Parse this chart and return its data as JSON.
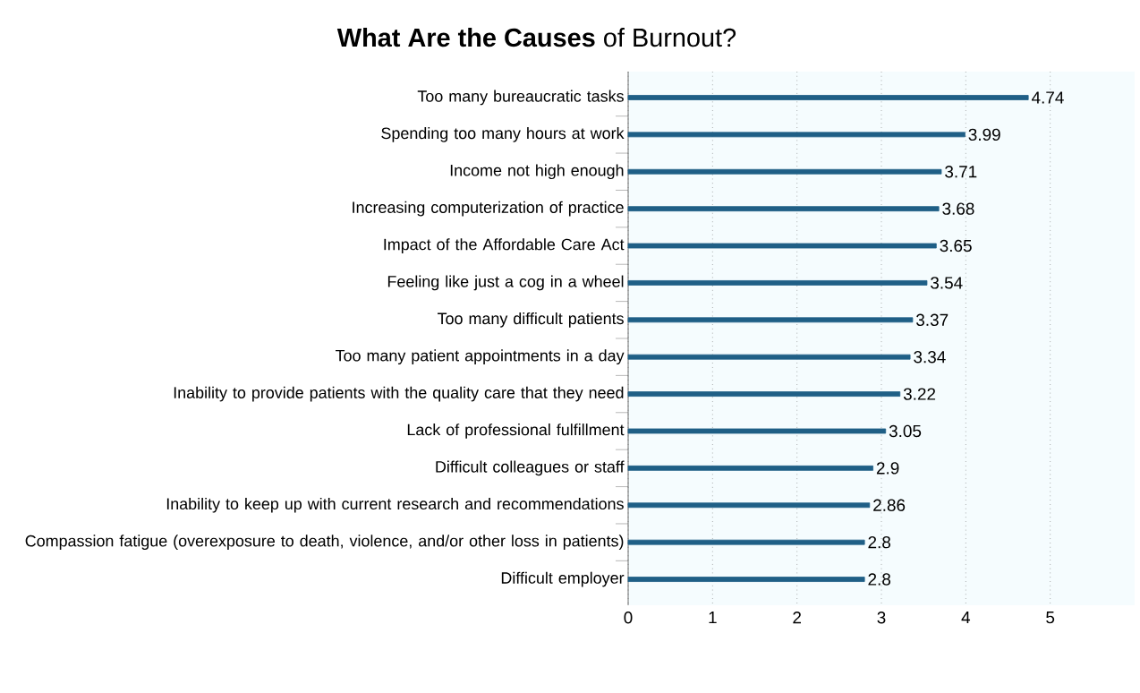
{
  "chart_data": {
    "type": "bar",
    "orientation": "horizontal",
    "title": "**What Are the Causes** of Burnout?",
    "categories": [
      "Too many bureaucratic tasks",
      "Spending too many hours at work",
      "Income not high enough",
      "Increasing computerization of practice",
      "Impact of the Affordable Care Act",
      "Feeling like just a cog in a wheel",
      "Too many difficult patients",
      "Too many patient appointments in a day",
      "Inability to provide patients with the quality care that they need",
      "Lack of professional fulfillment",
      "Difficult colleagues or staff",
      "Inability to keep up with current research and recommendations",
      "Compassion fatigue (overexposure to death, violence, and/or other loss in patients)",
      "Difficult employer"
    ],
    "values": [
      4.74,
      3.99,
      3.71,
      3.68,
      3.65,
      3.54,
      3.37,
      3.34,
      3.22,
      3.05,
      2.9,
      2.86,
      2.8,
      2.8
    ],
    "color": "#1f5f86",
    "xlim": [
      0,
      6
    ],
    "xticks": [
      0,
      1,
      2,
      3,
      4,
      5
    ],
    "grid": "x",
    "data_labels": true
  }
}
